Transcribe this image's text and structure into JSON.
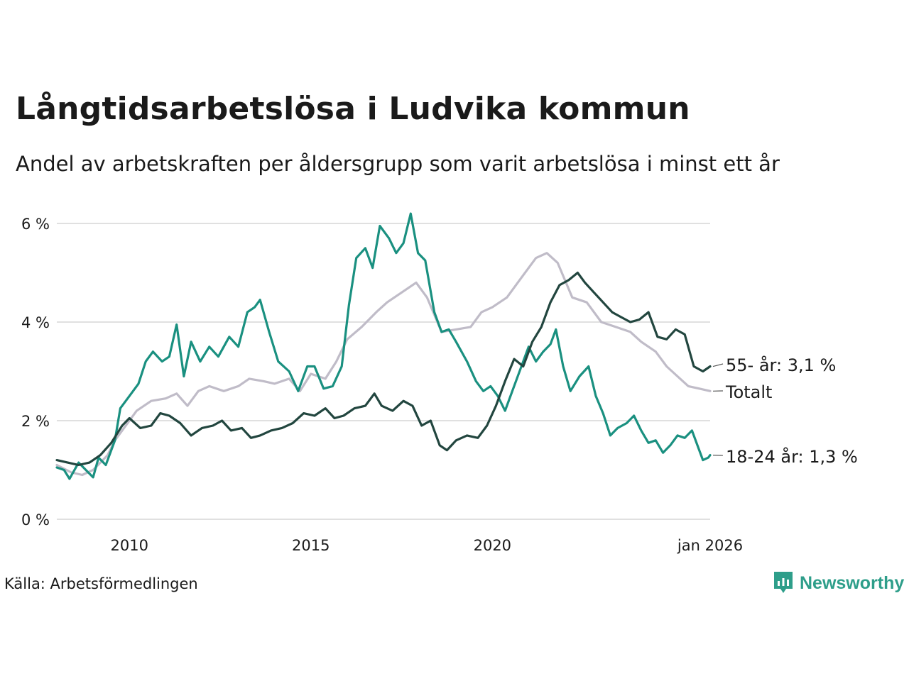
{
  "header": {
    "title": "Långtidsarbetslösa i Ludvika kommun",
    "subtitle": "Andel av arbetskraften per åldersgrupp som varit arbetslösa i minst ett år"
  },
  "footer": {
    "source": "Källa: Arbetsförmedlingen",
    "brand": "Newsworthy"
  },
  "colors": {
    "young": "#1a9080",
    "old": "#22463f",
    "total": "#c0bcc8",
    "grid": "#e0e0e0",
    "brand": "#2e9e8a"
  },
  "chart_data": {
    "type": "line",
    "title": "Långtidsarbetslösa i Ludvika kommun",
    "xlabel": "",
    "ylabel": "",
    "x_range": [
      2008.0,
      2026.0
    ],
    "ylim": [
      0,
      6
    ],
    "y_ticks": [
      {
        "value": 0,
        "label": "0 %"
      },
      {
        "value": 2,
        "label": "2 %"
      },
      {
        "value": 4,
        "label": "4 %"
      },
      {
        "value": 6,
        "label": "6 %"
      }
    ],
    "x_ticks": [
      {
        "value": 2010,
        "label": "2010"
      },
      {
        "value": 2015,
        "label": "2015"
      },
      {
        "value": 2020,
        "label": "2020"
      },
      {
        "value": 2026.0,
        "label": "jan 2026"
      }
    ],
    "series": [
      {
        "name": "Totalt",
        "end_label": "Totalt",
        "color": "#c0bcc8",
        "points": [
          [
            2008.0,
            1.1
          ],
          [
            2008.4,
            0.95
          ],
          [
            2008.7,
            0.9
          ],
          [
            2009.0,
            1.0
          ],
          [
            2009.4,
            1.3
          ],
          [
            2009.6,
            1.6
          ],
          [
            2009.9,
            1.9
          ],
          [
            2010.2,
            2.2
          ],
          [
            2010.6,
            2.4
          ],
          [
            2011.0,
            2.45
          ],
          [
            2011.3,
            2.55
          ],
          [
            2011.6,
            2.3
          ],
          [
            2011.9,
            2.6
          ],
          [
            2012.2,
            2.7
          ],
          [
            2012.6,
            2.6
          ],
          [
            2013.0,
            2.7
          ],
          [
            2013.3,
            2.85
          ],
          [
            2013.7,
            2.8
          ],
          [
            2014.0,
            2.75
          ],
          [
            2014.4,
            2.85
          ],
          [
            2014.7,
            2.6
          ],
          [
            2015.0,
            2.95
          ],
          [
            2015.4,
            2.85
          ],
          [
            2015.7,
            3.2
          ],
          [
            2016.0,
            3.65
          ],
          [
            2016.4,
            3.9
          ],
          [
            2016.8,
            4.2
          ],
          [
            2017.1,
            4.4
          ],
          [
            2017.5,
            4.6
          ],
          [
            2017.9,
            4.8
          ],
          [
            2018.2,
            4.5
          ],
          [
            2018.6,
            3.8
          ],
          [
            2019.0,
            3.85
          ],
          [
            2019.4,
            3.9
          ],
          [
            2019.7,
            4.2
          ],
          [
            2020.0,
            4.3
          ],
          [
            2020.4,
            4.5
          ],
          [
            2020.8,
            4.9
          ],
          [
            2021.2,
            5.3
          ],
          [
            2021.5,
            5.4
          ],
          [
            2021.8,
            5.2
          ],
          [
            2022.2,
            4.5
          ],
          [
            2022.6,
            4.4
          ],
          [
            2023.0,
            4.0
          ],
          [
            2023.4,
            3.9
          ],
          [
            2023.8,
            3.8
          ],
          [
            2024.1,
            3.6
          ],
          [
            2024.5,
            3.4
          ],
          [
            2024.8,
            3.1
          ],
          [
            2025.1,
            2.9
          ],
          [
            2025.4,
            2.7
          ],
          [
            2025.7,
            2.65
          ],
          [
            2026.0,
            2.6
          ]
        ]
      },
      {
        "name": "18-24 år",
        "end_label": "18-24 år: 1,3 %",
        "color": "#1a9080",
        "points": [
          [
            2008.0,
            1.05
          ],
          [
            2008.2,
            1.0
          ],
          [
            2008.35,
            0.82
          ],
          [
            2008.6,
            1.15
          ],
          [
            2008.8,
            1.0
          ],
          [
            2009.0,
            0.85
          ],
          [
            2009.15,
            1.25
          ],
          [
            2009.35,
            1.1
          ],
          [
            2009.6,
            1.6
          ],
          [
            2009.75,
            2.25
          ],
          [
            2010.0,
            2.5
          ],
          [
            2010.25,
            2.75
          ],
          [
            2010.45,
            3.2
          ],
          [
            2010.65,
            3.4
          ],
          [
            2010.9,
            3.2
          ],
          [
            2011.1,
            3.3
          ],
          [
            2011.3,
            3.95
          ],
          [
            2011.5,
            2.9
          ],
          [
            2011.7,
            3.6
          ],
          [
            2011.95,
            3.2
          ],
          [
            2012.2,
            3.5
          ],
          [
            2012.45,
            3.3
          ],
          [
            2012.75,
            3.7
          ],
          [
            2013.0,
            3.5
          ],
          [
            2013.25,
            4.2
          ],
          [
            2013.45,
            4.3
          ],
          [
            2013.6,
            4.45
          ],
          [
            2013.85,
            3.8
          ],
          [
            2014.1,
            3.2
          ],
          [
            2014.4,
            3.0
          ],
          [
            2014.65,
            2.6
          ],
          [
            2014.9,
            3.1
          ],
          [
            2015.1,
            3.1
          ],
          [
            2015.35,
            2.65
          ],
          [
            2015.6,
            2.7
          ],
          [
            2015.85,
            3.1
          ],
          [
            2016.05,
            4.35
          ],
          [
            2016.25,
            5.3
          ],
          [
            2016.5,
            5.5
          ],
          [
            2016.7,
            5.1
          ],
          [
            2016.9,
            5.95
          ],
          [
            2017.15,
            5.7
          ],
          [
            2017.35,
            5.4
          ],
          [
            2017.55,
            5.6
          ],
          [
            2017.75,
            6.2
          ],
          [
            2017.95,
            5.4
          ],
          [
            2018.15,
            5.25
          ],
          [
            2018.4,
            4.2
          ],
          [
            2018.6,
            3.8
          ],
          [
            2018.8,
            3.85
          ],
          [
            2019.0,
            3.6
          ],
          [
            2019.3,
            3.2
          ],
          [
            2019.55,
            2.8
          ],
          [
            2019.75,
            2.6
          ],
          [
            2019.95,
            2.7
          ],
          [
            2020.15,
            2.5
          ],
          [
            2020.35,
            2.2
          ],
          [
            2020.55,
            2.6
          ],
          [
            2020.8,
            3.1
          ],
          [
            2021.0,
            3.5
          ],
          [
            2021.2,
            3.2
          ],
          [
            2021.4,
            3.4
          ],
          [
            2021.6,
            3.55
          ],
          [
            2021.75,
            3.85
          ],
          [
            2021.95,
            3.1
          ],
          [
            2022.15,
            2.6
          ],
          [
            2022.4,
            2.9
          ],
          [
            2022.65,
            3.1
          ],
          [
            2022.85,
            2.5
          ],
          [
            2023.05,
            2.15
          ],
          [
            2023.25,
            1.7
          ],
          [
            2023.45,
            1.85
          ],
          [
            2023.7,
            1.95
          ],
          [
            2023.9,
            2.1
          ],
          [
            2024.1,
            1.8
          ],
          [
            2024.3,
            1.55
          ],
          [
            2024.5,
            1.6
          ],
          [
            2024.7,
            1.35
          ],
          [
            2024.9,
            1.5
          ],
          [
            2025.1,
            1.7
          ],
          [
            2025.3,
            1.65
          ],
          [
            2025.5,
            1.8
          ],
          [
            2025.65,
            1.5
          ],
          [
            2025.8,
            1.2
          ],
          [
            2025.95,
            1.25
          ],
          [
            2026.0,
            1.3
          ]
        ]
      },
      {
        "name": "55- år",
        "end_label": "55- år: 3,1 %",
        "color": "#22463f",
        "points": [
          [
            2008.0,
            1.2
          ],
          [
            2008.3,
            1.15
          ],
          [
            2008.6,
            1.1
          ],
          [
            2008.9,
            1.15
          ],
          [
            2009.2,
            1.3
          ],
          [
            2009.5,
            1.55
          ],
          [
            2009.8,
            1.9
          ],
          [
            2010.0,
            2.05
          ],
          [
            2010.3,
            1.85
          ],
          [
            2010.6,
            1.9
          ],
          [
            2010.85,
            2.15
          ],
          [
            2011.1,
            2.1
          ],
          [
            2011.4,
            1.95
          ],
          [
            2011.7,
            1.7
          ],
          [
            2012.0,
            1.85
          ],
          [
            2012.3,
            1.9
          ],
          [
            2012.55,
            2.0
          ],
          [
            2012.8,
            1.8
          ],
          [
            2013.1,
            1.85
          ],
          [
            2013.35,
            1.65
          ],
          [
            2013.6,
            1.7
          ],
          [
            2013.9,
            1.8
          ],
          [
            2014.2,
            1.85
          ],
          [
            2014.5,
            1.95
          ],
          [
            2014.8,
            2.15
          ],
          [
            2015.1,
            2.1
          ],
          [
            2015.4,
            2.25
          ],
          [
            2015.65,
            2.05
          ],
          [
            2015.9,
            2.1
          ],
          [
            2016.2,
            2.25
          ],
          [
            2016.5,
            2.3
          ],
          [
            2016.75,
            2.55
          ],
          [
            2016.95,
            2.3
          ],
          [
            2017.25,
            2.2
          ],
          [
            2017.55,
            2.4
          ],
          [
            2017.8,
            2.3
          ],
          [
            2018.05,
            1.9
          ],
          [
            2018.3,
            2.0
          ],
          [
            2018.55,
            1.5
          ],
          [
            2018.75,
            1.4
          ],
          [
            2019.0,
            1.6
          ],
          [
            2019.3,
            1.7
          ],
          [
            2019.6,
            1.65
          ],
          [
            2019.85,
            1.9
          ],
          [
            2020.1,
            2.3
          ],
          [
            2020.35,
            2.8
          ],
          [
            2020.6,
            3.25
          ],
          [
            2020.85,
            3.1
          ],
          [
            2021.1,
            3.6
          ],
          [
            2021.35,
            3.9
          ],
          [
            2021.6,
            4.4
          ],
          [
            2021.85,
            4.75
          ],
          [
            2022.1,
            4.85
          ],
          [
            2022.35,
            5.0
          ],
          [
            2022.55,
            4.8
          ],
          [
            2022.8,
            4.6
          ],
          [
            2023.05,
            4.4
          ],
          [
            2023.3,
            4.2
          ],
          [
            2023.55,
            4.1
          ],
          [
            2023.8,
            4.0
          ],
          [
            2024.05,
            4.05
          ],
          [
            2024.3,
            4.2
          ],
          [
            2024.55,
            3.7
          ],
          [
            2024.8,
            3.65
          ],
          [
            2025.05,
            3.85
          ],
          [
            2025.3,
            3.75
          ],
          [
            2025.55,
            3.1
          ],
          [
            2025.8,
            3.0
          ],
          [
            2026.0,
            3.1
          ]
        ]
      }
    ]
  }
}
